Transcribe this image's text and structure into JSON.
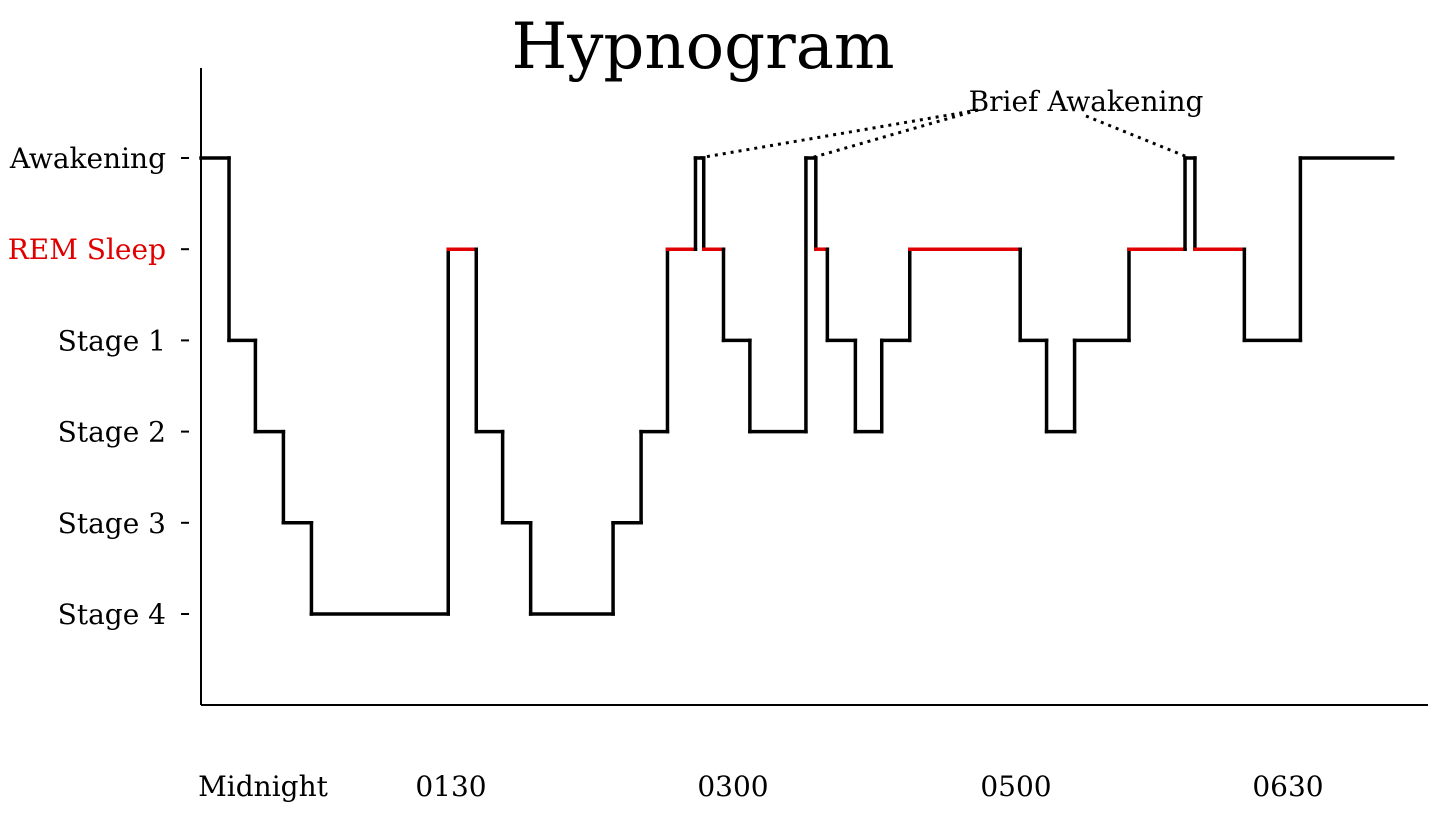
{
  "chart_data": {
    "type": "line",
    "title": "Hypnogram",
    "xlabel": "",
    "ylabel": "",
    "y_categories": [
      "Awakening",
      "REM Sleep",
      "Stage 1",
      "Stage 2",
      "Stage 3",
      "Stage 4"
    ],
    "y_category_colors": [
      "#000000",
      "#e00000",
      "#000000",
      "#000000",
      "#000000",
      "#000000"
    ],
    "x_ticks": [
      "Midnight",
      "0130",
      "0300",
      "0500",
      "0630"
    ],
    "x_range_hours": [
      0,
      7.25
    ],
    "rem_color": "#e00000",
    "line_color": "#000000",
    "steps": [
      {
        "start": 0.0,
        "end": 0.17,
        "stage": "Awakening"
      },
      {
        "start": 0.17,
        "end": 0.33,
        "stage": "Stage 1"
      },
      {
        "start": 0.33,
        "end": 0.5,
        "stage": "Stage 2"
      },
      {
        "start": 0.5,
        "end": 0.67,
        "stage": "Stage 3"
      },
      {
        "start": 0.67,
        "end": 1.5,
        "stage": "Stage 4"
      },
      {
        "start": 1.5,
        "end": 1.67,
        "stage": "REM Sleep"
      },
      {
        "start": 1.67,
        "end": 1.83,
        "stage": "Stage 2"
      },
      {
        "start": 1.83,
        "end": 2.0,
        "stage": "Stage 3"
      },
      {
        "start": 2.0,
        "end": 2.5,
        "stage": "Stage 4"
      },
      {
        "start": 2.5,
        "end": 2.67,
        "stage": "Stage 3"
      },
      {
        "start": 2.67,
        "end": 2.83,
        "stage": "Stage 2"
      },
      {
        "start": 2.83,
        "end": 3.0,
        "stage": "REM Sleep"
      },
      {
        "start": 3.0,
        "end": 3.05,
        "stage": "Awakening"
      },
      {
        "start": 3.05,
        "end": 3.17,
        "stage": "REM Sleep"
      },
      {
        "start": 3.17,
        "end": 3.33,
        "stage": "Stage 1"
      },
      {
        "start": 3.33,
        "end": 3.67,
        "stage": "Stage 2"
      },
      {
        "start": 3.67,
        "end": 3.73,
        "stage": "Awakening"
      },
      {
        "start": 3.73,
        "end": 3.8,
        "stage": "REM Sleep"
      },
      {
        "start": 3.8,
        "end": 3.97,
        "stage": "Stage 1"
      },
      {
        "start": 3.97,
        "end": 4.13,
        "stage": "Stage 2"
      },
      {
        "start": 4.13,
        "end": 4.3,
        "stage": "Stage 1"
      },
      {
        "start": 4.3,
        "end": 4.97,
        "stage": "REM Sleep"
      },
      {
        "start": 4.97,
        "end": 5.13,
        "stage": "Stage 1"
      },
      {
        "start": 5.13,
        "end": 5.3,
        "stage": "Stage 2"
      },
      {
        "start": 5.3,
        "end": 5.63,
        "stage": "Stage 1"
      },
      {
        "start": 5.63,
        "end": 5.97,
        "stage": "REM Sleep"
      },
      {
        "start": 5.97,
        "end": 6.03,
        "stage": "Awakening"
      },
      {
        "start": 6.03,
        "end": 6.33,
        "stage": "REM Sleep"
      },
      {
        "start": 6.33,
        "end": 6.67,
        "stage": "Stage 1"
      },
      {
        "start": 6.67,
        "end": 7.23,
        "stage": "Awakening"
      }
    ],
    "annotations": [
      {
        "text": "Brief Awakening",
        "targets_hours": [
          3.02,
          3.7,
          6.0
        ]
      }
    ]
  }
}
